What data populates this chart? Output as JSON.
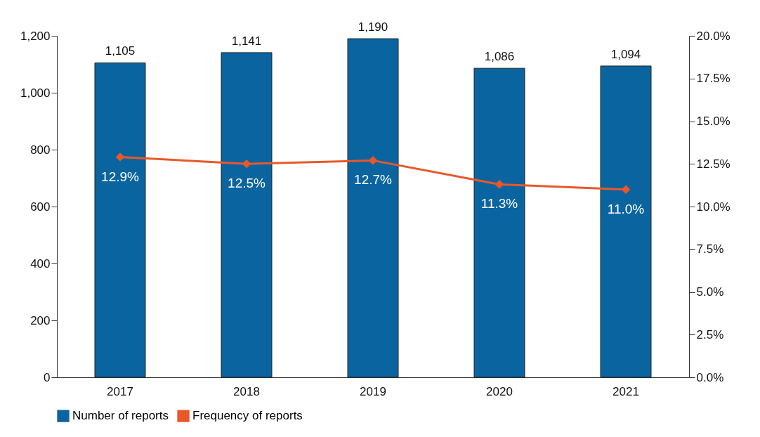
{
  "chart_data": {
    "type": "bar",
    "categories": [
      "2017",
      "2018",
      "2019",
      "2020",
      "2021"
    ],
    "series": [
      {
        "name": "Number of reports",
        "color": "#0a64a0",
        "values": [
          1105,
          1141,
          1190,
          1086,
          1094
        ],
        "value_labels": [
          "1,105",
          "1,141",
          "1,190",
          "1,086",
          "1,094"
        ]
      },
      {
        "name": "Frequency of reports",
        "type": "line",
        "axis": "y2",
        "color": "#e8582a",
        "values": [
          12.9,
          12.5,
          12.7,
          11.3,
          11.0
        ],
        "value_labels": [
          "12.9%",
          "12.5%",
          "12.7%",
          "11.3%",
          "11.0%"
        ]
      }
    ],
    "ylim": [
      0,
      1200
    ],
    "yticks": [
      0,
      200,
      400,
      600,
      800,
      {
        "value": 1000,
        "label": "1,000"
      },
      {
        "value": 1200,
        "label": "1,200"
      }
    ],
    "y2lim": [
      0,
      20
    ],
    "y2ticks": [
      {
        "value": 0,
        "label": "0.0%"
      },
      {
        "value": 2.5,
        "label": "2.5%"
      },
      {
        "value": 5,
        "label": "5.0%"
      },
      {
        "value": 7.5,
        "label": "7.5%"
      },
      {
        "value": 10,
        "label": "10.0%"
      },
      {
        "value": 12.5,
        "label": "12.5%"
      },
      {
        "value": 15,
        "label": "15.0%"
      },
      {
        "value": 17.5,
        "label": "17.5%"
      },
      {
        "value": 20,
        "label": "20.0%"
      }
    ],
    "legend": "bottom",
    "marker": "diamond"
  }
}
